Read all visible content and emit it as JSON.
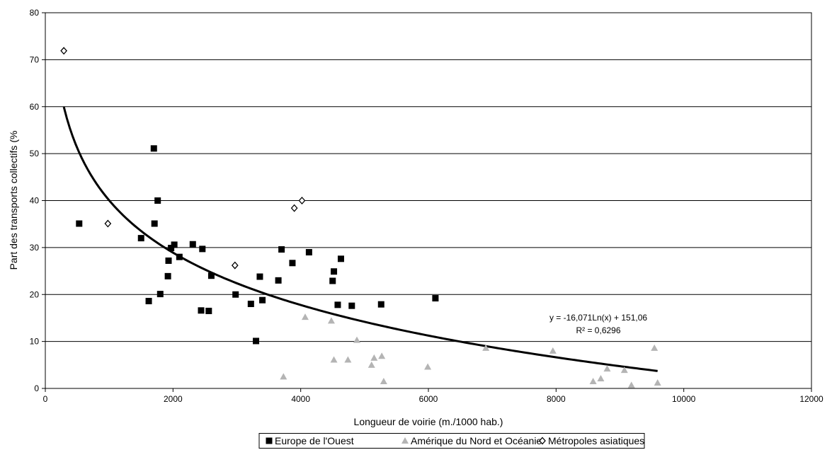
{
  "chart_data": {
    "type": "scatter",
    "xlabel": "Longueur de voirie (m./1000 hab.)",
    "ylabel": "Part des transports collectifs (%",
    "xlim": [
      0,
      12000
    ],
    "ylim": [
      0,
      80
    ],
    "xticks": [
      "0",
      "2000",
      "4000",
      "6000",
      "8000",
      "10000",
      "12000"
    ],
    "yticks": [
      "0",
      "10",
      "20",
      "30",
      "40",
      "50",
      "60",
      "70",
      "80"
    ],
    "grid": "horizontal",
    "legend_position": "bottom",
    "series": [
      {
        "name": "Europe de l'Ouest",
        "marker": "square",
        "color": "#000000",
        "points": [
          [
            530,
            35.1
          ],
          [
            1500,
            32
          ],
          [
            1620,
            18.6
          ],
          [
            1700,
            51.1
          ],
          [
            1710,
            35.1
          ],
          [
            1760,
            40
          ],
          [
            1800,
            20.1
          ],
          [
            1920,
            23.9
          ],
          [
            1930,
            27.2
          ],
          [
            1970,
            29.9
          ],
          [
            2020,
            30.6
          ],
          [
            2100,
            28
          ],
          [
            2310,
            30.7
          ],
          [
            2440,
            16.6
          ],
          [
            2460,
            29.7
          ],
          [
            2560,
            16.5
          ],
          [
            2600,
            24
          ],
          [
            2980,
            20
          ],
          [
            3220,
            18
          ],
          [
            3300,
            10.1
          ],
          [
            3360,
            23.8
          ],
          [
            3400,
            18.8
          ],
          [
            3650,
            23
          ],
          [
            3700,
            29.6
          ],
          [
            3870,
            26.7
          ],
          [
            4130,
            29
          ],
          [
            4500,
            22.9
          ],
          [
            4520,
            24.9
          ],
          [
            4580,
            17.8
          ],
          [
            4630,
            27.6
          ],
          [
            4800,
            17.6
          ],
          [
            5260,
            17.9
          ],
          [
            6110,
            19.2
          ]
        ]
      },
      {
        "name": "Amérique du Nord et Océanie",
        "marker": "triangle",
        "color": "#b4b4b4",
        "points": [
          [
            3730,
            2.5
          ],
          [
            4070,
            15.2
          ],
          [
            4480,
            14.4
          ],
          [
            4520,
            6.1
          ],
          [
            4740,
            6.1
          ],
          [
            4880,
            10.3
          ],
          [
            5110,
            5
          ],
          [
            5150,
            6.5
          ],
          [
            5270,
            6.9
          ],
          [
            5300,
            1.5
          ],
          [
            5990,
            4.6
          ],
          [
            6900,
            8.6
          ],
          [
            7950,
            8
          ],
          [
            8580,
            1.5
          ],
          [
            8700,
            2.1
          ],
          [
            8800,
            4.2
          ],
          [
            9070,
            3.9
          ],
          [
            9180,
            0.7
          ],
          [
            9540,
            8.6
          ],
          [
            9590,
            1.2
          ]
        ]
      },
      {
        "name": "Métropoles asiatiques",
        "marker": "diamond",
        "color": "#000000",
        "points": [
          [
            290,
            71.9
          ],
          [
            980,
            35.1
          ],
          [
            2970,
            26.2
          ],
          [
            3900,
            38.4
          ],
          [
            4020,
            40
          ]
        ]
      }
    ],
    "trendline": {
      "type": "logarithmic",
      "a": -16.071,
      "b": 151.06,
      "x_range": [
        290,
        9590
      ],
      "equation_label": "y = -16,071Ln(x) + 151,06",
      "r2_label": "R² = 0,6296"
    }
  }
}
